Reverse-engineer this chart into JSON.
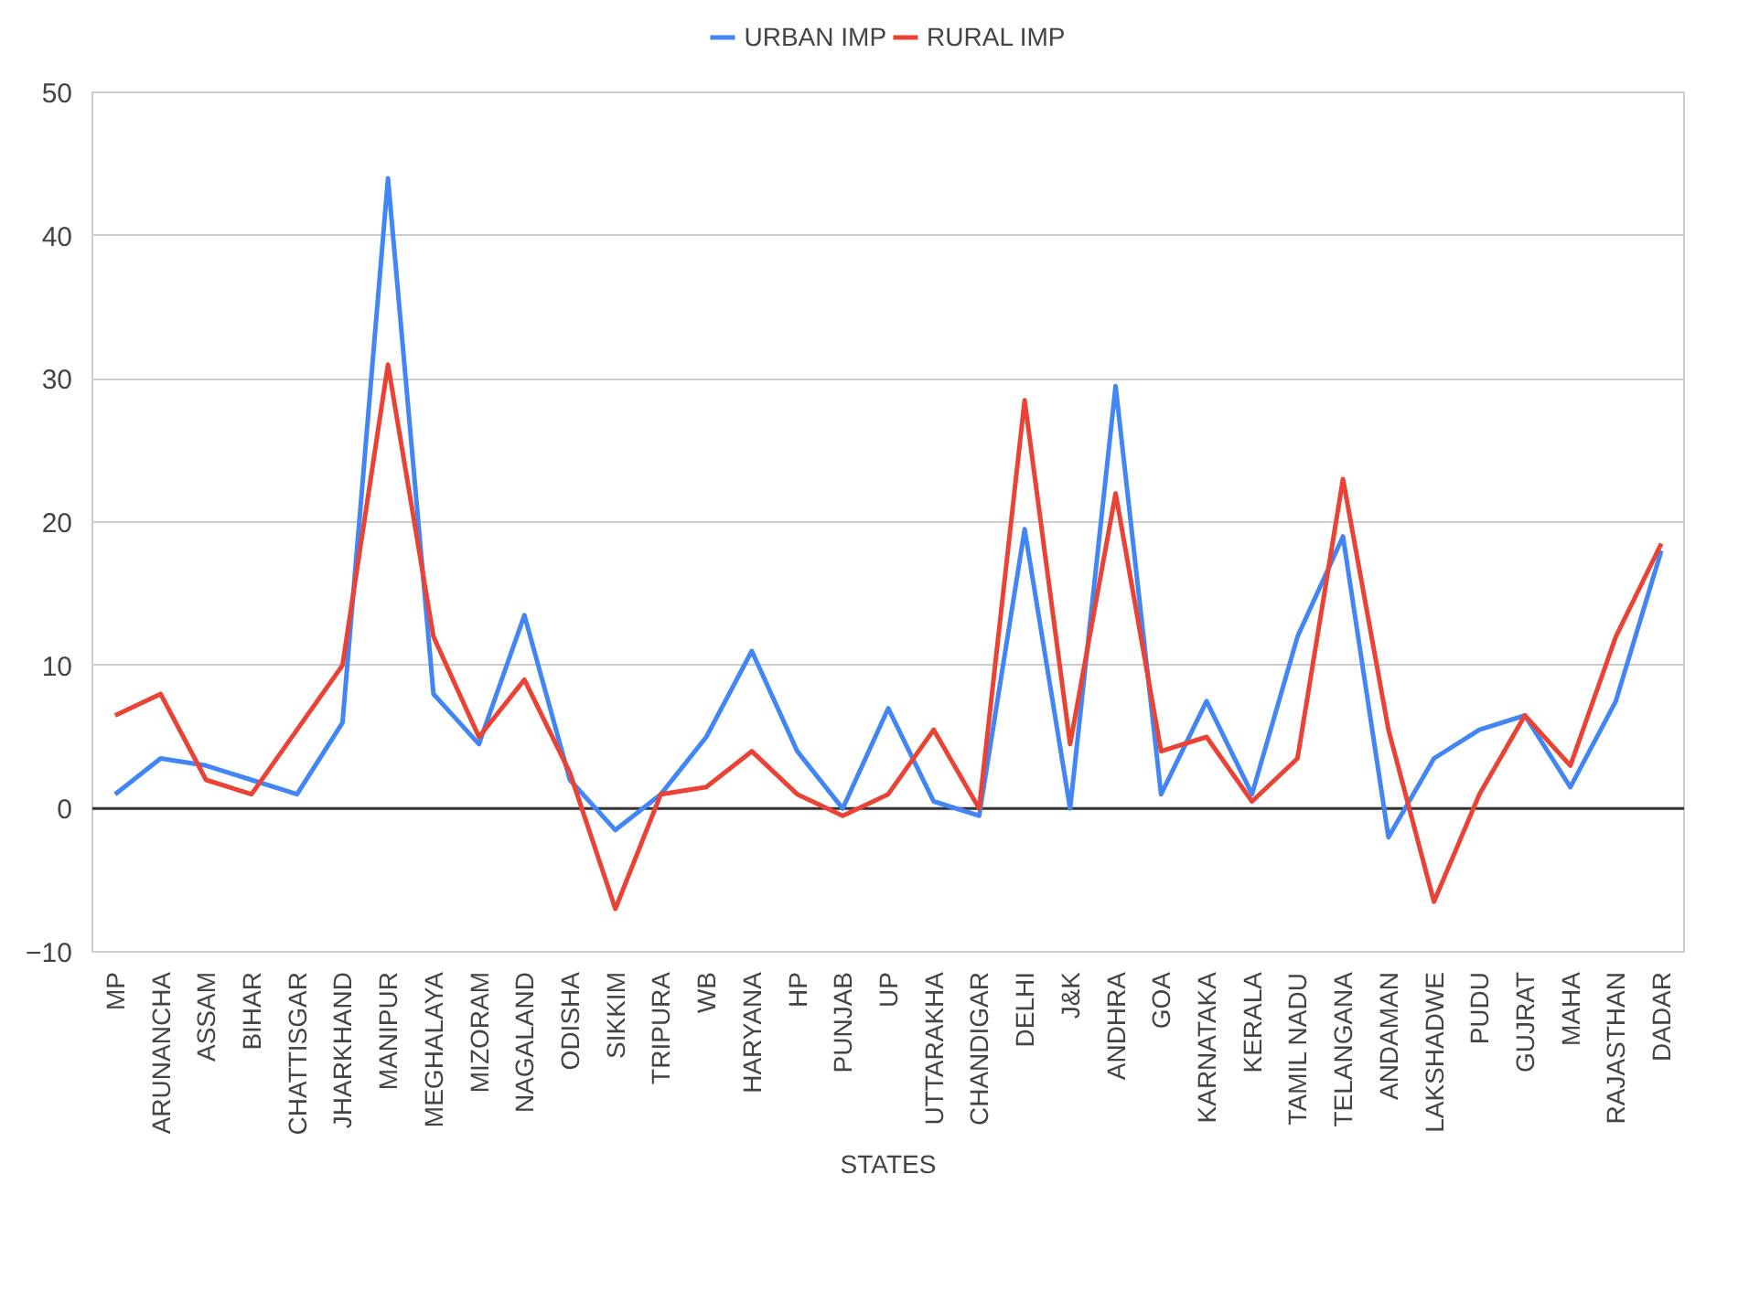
{
  "chart_data": {
    "type": "line",
    "xlabel": "STATES",
    "categories": [
      "MP",
      "ARUNANCHA",
      "ASSAM",
      "BIHAR",
      "CHATTISGAR",
      "JHARKHAND",
      "MANIPUR",
      "MEGHALAYA",
      "MIZORAM",
      "NAGALAND",
      "ODISHA",
      "SIKKIM",
      "TRIPURA",
      "WB",
      "HARYANA",
      "HP",
      "PUNJAB",
      "UP",
      "UTTARAKHA",
      "CHANDIGAR",
      "DELHI",
      "J&K",
      "ANDHRA",
      "GOA",
      "KARNATAKA",
      "KERALA",
      "TAMIL NADU",
      "TELANGANA",
      "ANDAMAN",
      "LAKSHADWE",
      "PUDU",
      "GUJRAT",
      "MAHA",
      "RAJASTHAN",
      "DADAR"
    ],
    "series": [
      {
        "name": "URBAN IMP",
        "color": "#4285f4",
        "values": [
          1,
          3.5,
          3,
          2,
          1,
          6,
          44,
          8,
          4.5,
          13.5,
          2,
          -1.5,
          1,
          5,
          11,
          4,
          0,
          7,
          0.5,
          -0.5,
          19.5,
          0,
          29.5,
          1,
          7.5,
          1,
          12,
          19,
          -2,
          3.5,
          5.5,
          6.5,
          1.5,
          7.5,
          18
        ]
      },
      {
        "name": "RURAL IMP",
        "color": "#ea4335",
        "values": [
          6.5,
          8,
          2,
          1,
          5.5,
          10,
          31,
          12,
          5,
          9,
          2.5,
          -7,
          1,
          1.5,
          4,
          1,
          -0.5,
          1,
          5.5,
          0,
          28.5,
          4.5,
          22,
          4,
          5,
          0.5,
          3.5,
          23,
          5.5,
          -6.5,
          1,
          6.5,
          3,
          12,
          18.5
        ]
      }
    ],
    "ylim": [
      -10,
      50
    ],
    "yticks": [
      -10,
      0,
      10,
      20,
      30,
      40,
      50
    ],
    "grid": "y",
    "legend": "top",
    "marker": "none",
    "line_style": "solid",
    "ref_lines": [
      {
        "axis": "y",
        "value": 0,
        "color": "#333333"
      }
    ]
  }
}
